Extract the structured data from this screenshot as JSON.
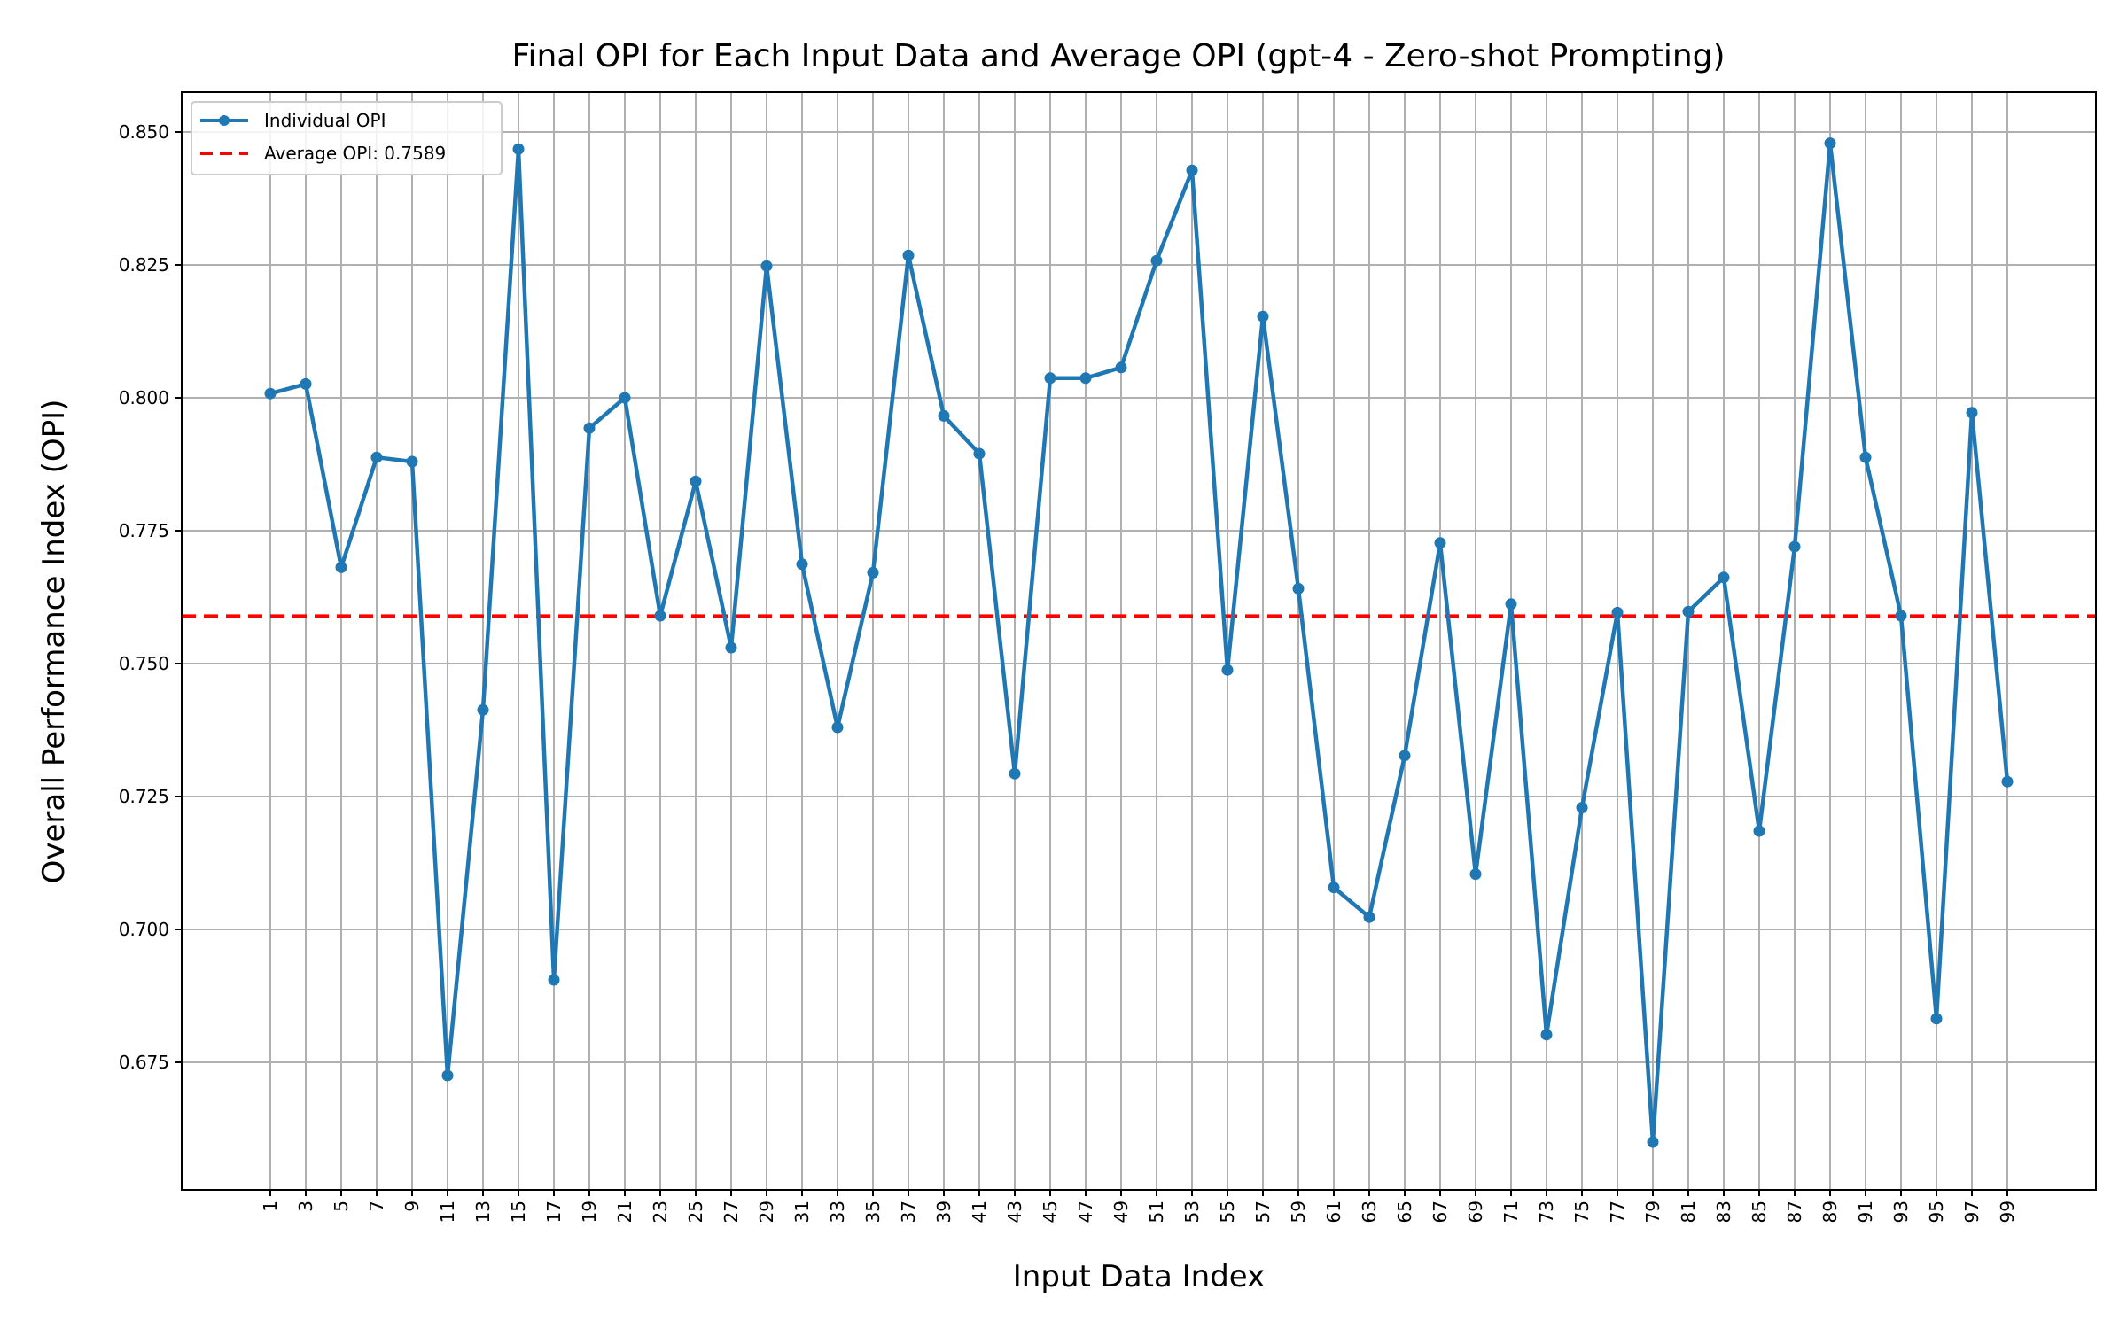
{
  "chart_data": {
    "type": "line",
    "title": "Final OPI for Each Input Data and Average OPI (gpt-4 - Zero-shot Prompting)",
    "xlabel": "Input Data Index",
    "ylabel": "Overall Performance Index (OPI)",
    "x": [
      1,
      3,
      5,
      7,
      9,
      11,
      13,
      15,
      17,
      19,
      21,
      23,
      25,
      27,
      29,
      31,
      33,
      35,
      37,
      39,
      41,
      43,
      45,
      47,
      49,
      51,
      53,
      55,
      57,
      59,
      61,
      63,
      65,
      67,
      69,
      71,
      73,
      75,
      77,
      79,
      81,
      83,
      85,
      87,
      89,
      91,
      93,
      95,
      97,
      99
    ],
    "xticks": [
      "1",
      "3",
      "5",
      "7",
      "9",
      "11",
      "13",
      "15",
      "17",
      "19",
      "21",
      "23",
      "25",
      "27",
      "29",
      "31",
      "33",
      "35",
      "37",
      "39",
      "41",
      "43",
      "45",
      "47",
      "49",
      "51",
      "53",
      "55",
      "57",
      "59",
      "61",
      "63",
      "65",
      "67",
      "69",
      "71",
      "73",
      "75",
      "77",
      "79",
      "81",
      "83",
      "85",
      "87",
      "89",
      "91",
      "93",
      "95",
      "97",
      "99"
    ],
    "xlim": [
      -4,
      104
    ],
    "ylim": [
      0.651,
      0.8575
    ],
    "yticks": [
      0.675,
      0.7,
      0.725,
      0.75,
      0.775,
      0.8,
      0.825,
      0.85
    ],
    "ytick_labels": [
      "0.675",
      "0.700",
      "0.725",
      "0.750",
      "0.775",
      "0.800",
      "0.825",
      "0.850"
    ],
    "grid": true,
    "legend_position": "top-left",
    "series": [
      {
        "name": "Individual OPI",
        "color": "#1f77b4",
        "style": "line-with-markers",
        "values": [
          0.8008,
          0.8026,
          0.7681,
          0.7888,
          0.788,
          0.6725,
          0.7413,
          0.8468,
          0.6905,
          0.7943,
          0.8,
          0.759,
          0.7843,
          0.753,
          0.8248,
          0.7687,
          0.738,
          0.7671,
          0.8268,
          0.7966,
          0.7895,
          0.7293,
          0.8037,
          0.8037,
          0.8057,
          0.8258,
          0.8428,
          0.7488,
          0.8153,
          0.7641,
          0.7079,
          0.7023,
          0.7327,
          0.7727,
          0.7104,
          0.7612,
          0.6802,
          0.7229,
          0.7596,
          0.66,
          0.7598,
          0.7662,
          0.7185,
          0.772,
          0.8479,
          0.7888,
          0.759,
          0.6832,
          0.7972,
          0.7278
        ]
      }
    ],
    "reference_lines": [
      {
        "name": "Average OPI: 0.7589",
        "value": 0.7589,
        "color": "#ff0000",
        "style": "dashed"
      }
    ]
  }
}
